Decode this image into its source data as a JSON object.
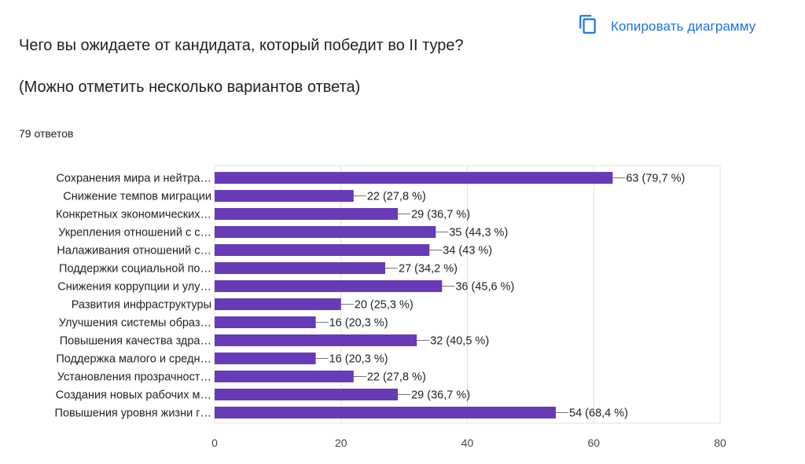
{
  "header": {
    "copy_label": "Копировать диаграмму",
    "copy_icon": "copy-icon",
    "accent_color": "#1a73e8"
  },
  "question": {
    "title": "Чего вы ожидаете от кандидата, который победит во II туре?",
    "subtitle": "(Можно отметить несколько вариантов ответа)",
    "responses": "79 ответов"
  },
  "chart_data": {
    "type": "bar",
    "orientation": "horizontal",
    "bar_color": "#673ab7",
    "xlim": [
      0,
      80
    ],
    "xticks": [
      0,
      20,
      40,
      60,
      80
    ],
    "grid": true,
    "categories": [
      "Сохранения мира и нейтра…",
      "Снижение темпов миграции",
      "Конкретных экономических…",
      "Укрепления отношений с с…",
      "Налаживания отношений с…",
      "Поддержки социальной по…",
      "Снижения коррупции и улу…",
      "Развития инфраструктуры",
      "Улучшения системы образ…",
      "Повышения качества здра…",
      "Поддержка малого и средн…",
      "Установления прозрачност…",
      "Создания новых рабочих м…",
      "Повышения уровня жизни г…"
    ],
    "values": [
      63,
      22,
      29,
      35,
      34,
      27,
      36,
      20,
      16,
      32,
      16,
      22,
      29,
      54
    ],
    "labels": [
      "63 (79,7 %)",
      "22 (27,8 %)",
      "29 (36,7 %)",
      "35 (44,3 %)",
      "34 (43 %)",
      "27 (34,2 %)",
      "36 (45,6 %)",
      "20 (25,3 %)",
      "16 (20,3 %)",
      "32 (40,5 %)",
      "16 (20,3 %)",
      "22 (27,8 %)",
      "29 (36,7 %)",
      "54 (68,4 %)"
    ]
  }
}
